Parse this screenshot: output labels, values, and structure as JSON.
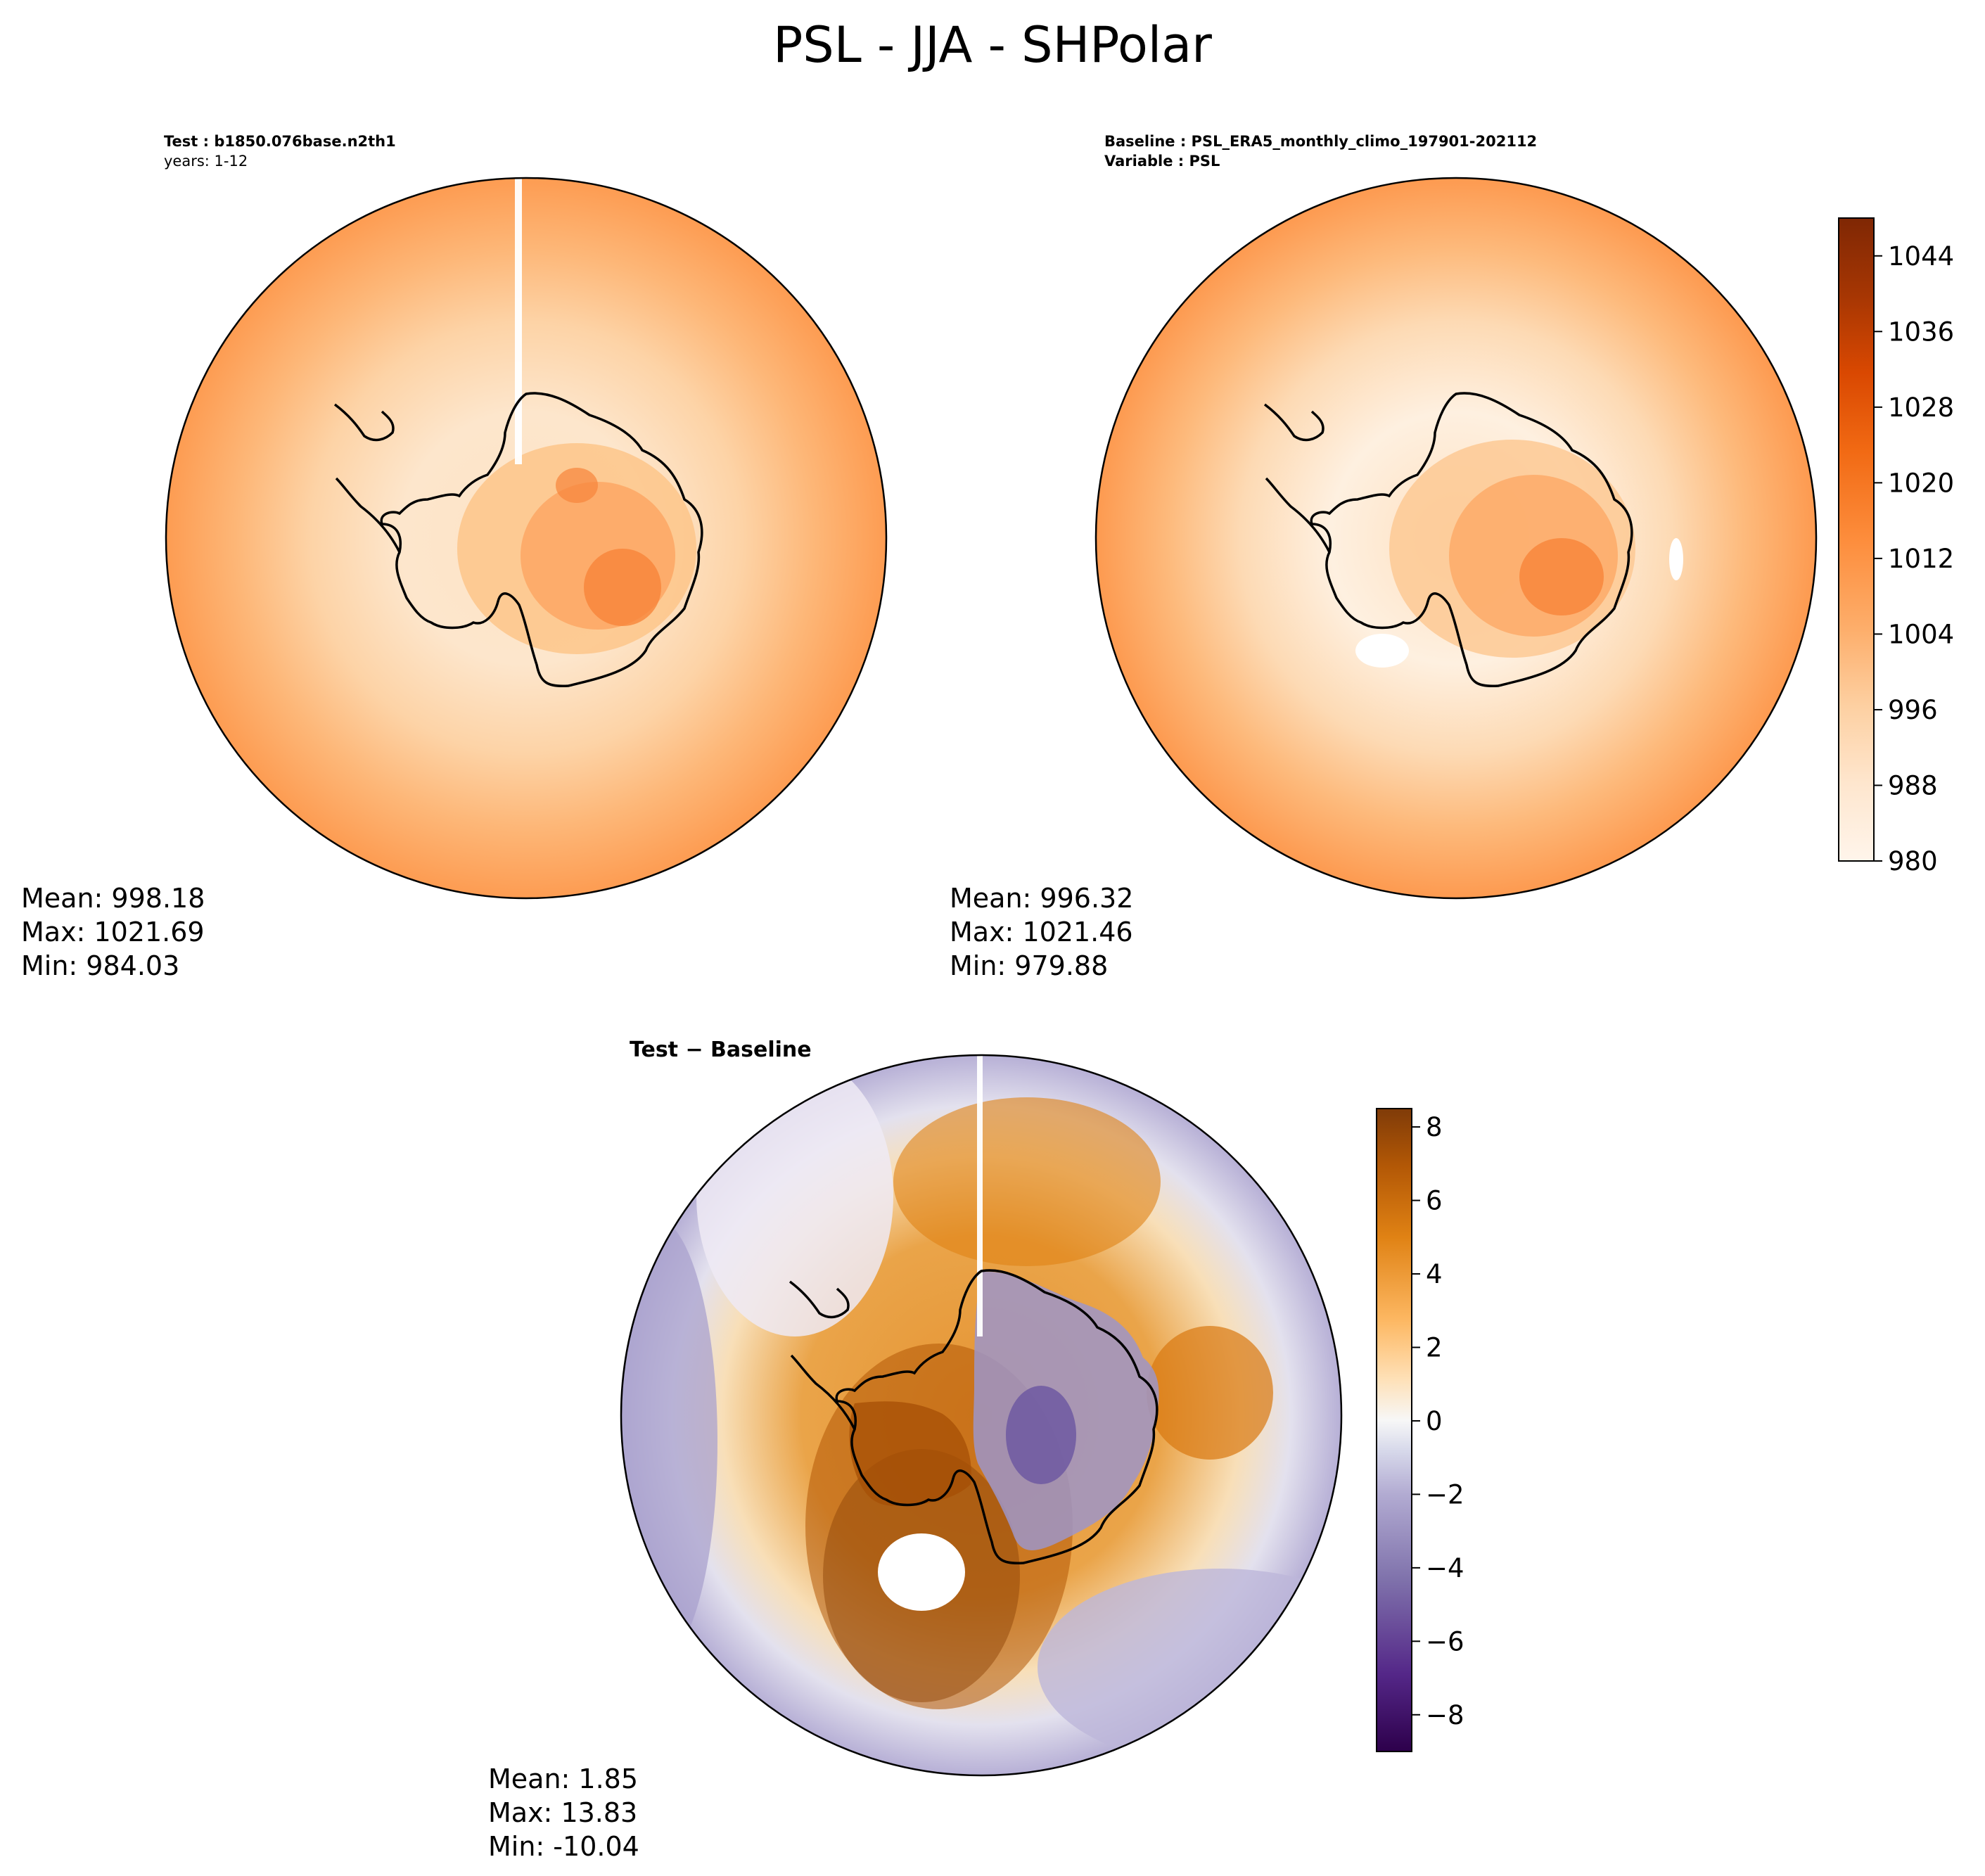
{
  "figure": {
    "title": "PSL - JJA - SHPolar"
  },
  "panels": {
    "test": {
      "label_bold": "Test",
      "label_value": "b1850.076base.n2th1",
      "years_line": "years: 1-12",
      "stats": {
        "mean": "Mean: 998.18",
        "max": "Max: 1021.69",
        "min": "Min: 984.03"
      }
    },
    "baseline": {
      "label1_bold": "Baseline",
      "label1_value": "PSL_ERA5_monthly_climo_197901-202112",
      "label2_bold": "Variable",
      "label2_value": "PSL",
      "stats": {
        "mean": "Mean: 996.32",
        "max": "Max: 1021.46",
        "min": "Min: 979.88"
      }
    },
    "difference": {
      "title": "Test − Baseline",
      "stats": {
        "mean": "Mean:  1.85",
        "max": "Max: 13.83",
        "min": "Min: -10.04"
      }
    }
  },
  "colorbars": {
    "absolute": {
      "ticks": [
        "980",
        "988",
        "996",
        "1004",
        "1012",
        "1020",
        "1028",
        "1036",
        "1044"
      ],
      "range": [
        980,
        1048
      ],
      "colors": [
        "#fff5eb",
        "#fde9d4",
        "#fdd8b2",
        "#fdc28c",
        "#fda762",
        "#fd8c3b",
        "#f16913",
        "#d94801",
        "#a63603",
        "#7f2704"
      ]
    },
    "difference": {
      "ticks": [
        "−8",
        "−6",
        "−4",
        "−2",
        "0",
        "2",
        "4",
        "6",
        "8"
      ],
      "range": [
        -9,
        8.5
      ],
      "colors": [
        "#2d004b",
        "#542788",
        "#8073ac",
        "#b2abd2",
        "#d8daeb",
        "#f7f7f7",
        "#fee0b6",
        "#fdb863",
        "#e08214",
        "#b35806",
        "#7f3b08"
      ]
    }
  },
  "chart_data": [
    {
      "type": "heatmap",
      "title": "Test: b1850.076base.n2th1",
      "projection": "south polar stereographic",
      "field": "PSL",
      "season": "JJA",
      "region": "SHPolar",
      "levels": [
        980,
        984,
        988,
        992,
        996,
        1000,
        1004,
        1008,
        1012,
        1016,
        1020,
        1024,
        1028,
        1032,
        1036,
        1040,
        1044,
        1048
      ],
      "approx_values": {
        "outer_ring": 1009,
        "mid_ocean": 992,
        "antarctic_interior": 1014
      },
      "stats": {
        "mean": 998.18,
        "max": 1021.69,
        "min": 984.03
      }
    },
    {
      "type": "heatmap",
      "title": "Baseline: PSL_ERA5_monthly_climo_197901-202112",
      "projection": "south polar stereographic",
      "field": "PSL",
      "season": "JJA",
      "region": "SHPolar",
      "levels": [
        980,
        984,
        988,
        992,
        996,
        1000,
        1004,
        1008,
        1012,
        1016,
        1020,
        1024,
        1028,
        1032,
        1036,
        1040,
        1044,
        1048
      ],
      "approx_values": {
        "outer_ring": 1008,
        "mid_ocean": 988,
        "antarctic_interior": 1016
      },
      "stats": {
        "mean": 996.32,
        "max": 1021.46,
        "min": 979.88
      }
    },
    {
      "type": "heatmap",
      "title": "Test − Baseline",
      "projection": "south polar stereographic",
      "field": "PSL difference",
      "levels": [
        -9,
        -8,
        -7,
        -6,
        -5,
        -4,
        -3,
        -2,
        -1,
        0,
        1,
        2,
        3,
        4,
        5,
        6,
        7,
        8
      ],
      "approx_values": {
        "pacific_sector": 7,
        "indian_ocean_sector": 4,
        "east_antarctic_interior": -5,
        "outer_southern_ring": -3
      },
      "stats": {
        "mean": 1.85,
        "max": 13.83,
        "min": -10.04
      }
    }
  ]
}
